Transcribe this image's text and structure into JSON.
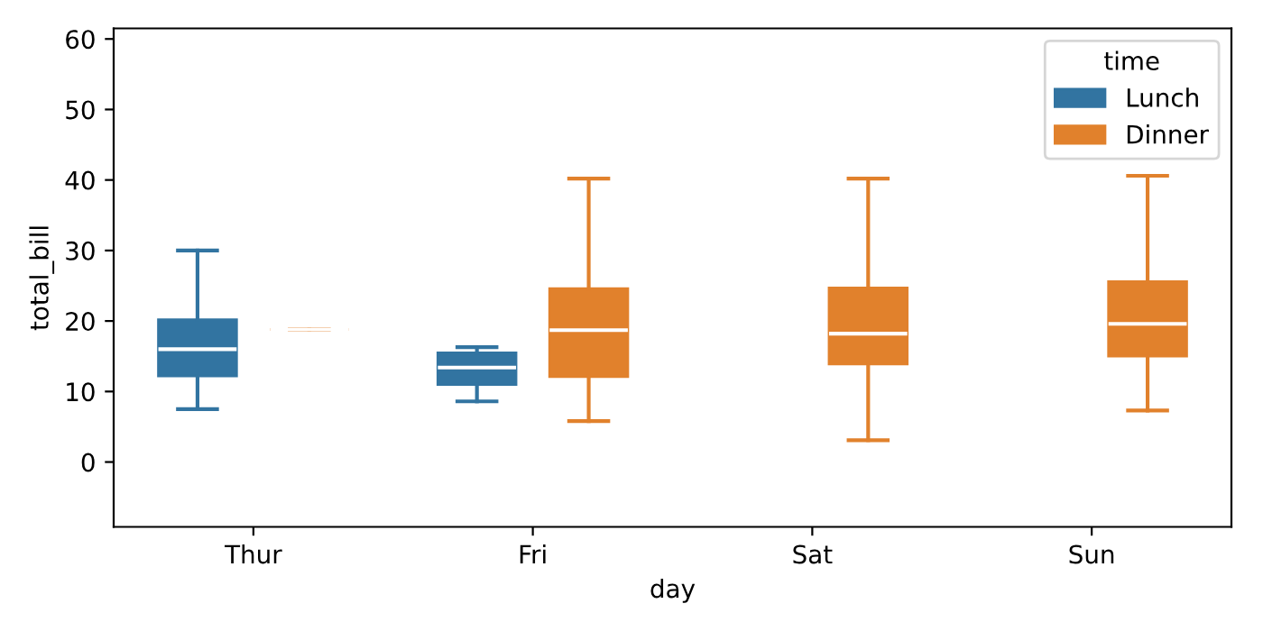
{
  "chart_data": {
    "type": "box",
    "xlabel": "day",
    "ylabel": "total_bill",
    "legend_title": "time",
    "legend": "top right",
    "categories": [
      "Thur",
      "Fri",
      "Sat",
      "Sun"
    ],
    "ylim": [
      -9.2,
      61.5
    ],
    "yticks": [
      0,
      10,
      20,
      30,
      40,
      50,
      60
    ],
    "series": [
      {
        "name": "Lunch",
        "color": "#3274a1",
        "boxes": [
          {
            "low": 7.5,
            "q1": 12.2,
            "median": 16.0,
            "q3": 20.2,
            "high": 30.0
          },
          {
            "low": 8.6,
            "q1": 11.0,
            "median": 13.4,
            "q3": 15.5,
            "high": 16.3
          },
          null,
          null
        ]
      },
      {
        "name": "Dinner",
        "color": "#e1812c",
        "boxes": [
          {
            "low": 18.8,
            "q1": 18.8,
            "median": 18.8,
            "q3": 18.8,
            "high": 18.8
          },
          {
            "low": 5.8,
            "q1": 12.1,
            "median": 18.7,
            "q3": 24.6,
            "high": 40.2
          },
          {
            "low": 3.1,
            "q1": 13.9,
            "median": 18.2,
            "q3": 24.7,
            "high": 40.2
          },
          {
            "low": 7.3,
            "q1": 15.0,
            "median": 19.6,
            "q3": 25.6,
            "high": 40.6
          }
        ]
      }
    ]
  }
}
